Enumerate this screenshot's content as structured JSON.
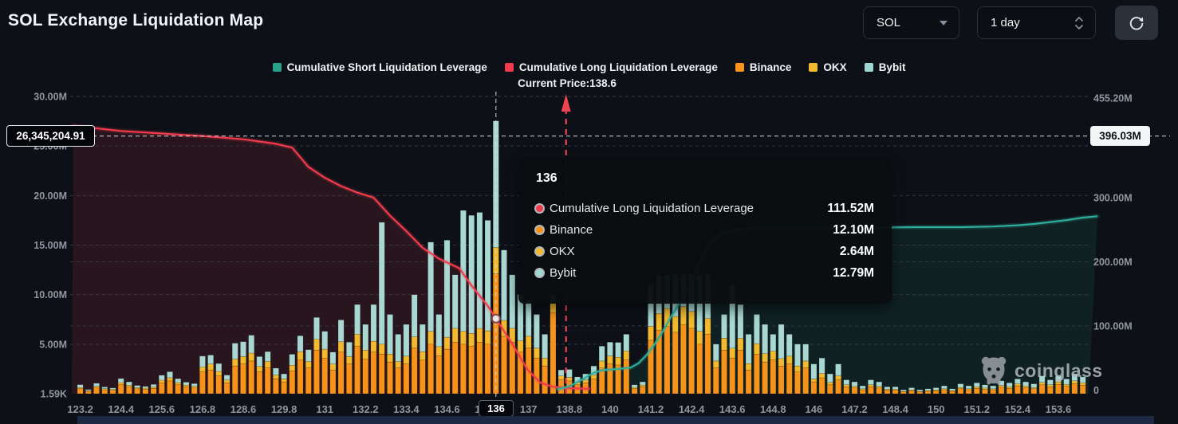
{
  "header": {
    "title": "SOL Exchange Liquidation Map"
  },
  "controls": {
    "symbol_select": {
      "value": "SOL"
    },
    "interval_select": {
      "value": "1 day"
    },
    "refresh_icon": "refresh-arrows"
  },
  "legend": {
    "items": [
      {
        "label": "Cumulative Short Liquidation Leverage",
        "color": "#2aa18b"
      },
      {
        "label": "Cumulative Long Liquidation Leverage",
        "color": "#f23b4e"
      },
      {
        "label": "Binance",
        "color": "#f7931a"
      },
      {
        "label": "OKX",
        "color": "#f3ba2f"
      },
      {
        "label": "Bybit",
        "color": "#9fd8d2"
      }
    ]
  },
  "current_price_label": "Current Price:138.6",
  "crosshair": {
    "y_left_label": "26,345,204.91",
    "y_right_label": "396.03M",
    "x_label": "136"
  },
  "tooltip": {
    "title": "136",
    "rows": [
      {
        "label": "Cumulative Long Liquidation Leverage",
        "value": "111.52M",
        "color": "#f23b4e"
      },
      {
        "label": "Binance",
        "value": "12.10M",
        "color": "#f7931a"
      },
      {
        "label": "OKX",
        "value": "2.64M",
        "color": "#f3ba2f"
      },
      {
        "label": "Bybit",
        "value": "12.79M",
        "color": "#9fd8d2"
      }
    ]
  },
  "watermark": {
    "text": "coinglass"
  },
  "chart_data": {
    "type": "bar",
    "subtype": "stacked-bars-with-cumulative-lines",
    "bar_axis": "left",
    "line_axis": "right",
    "left_axis": {
      "unit": "M",
      "ticks": [
        {
          "value": 30,
          "label": "30.00M"
        },
        {
          "value": 25,
          "label": "25.00M"
        },
        {
          "value": 20,
          "label": "20.00M"
        },
        {
          "value": 15,
          "label": "15.00M"
        },
        {
          "value": 10,
          "label": "10.00M"
        },
        {
          "value": 5,
          "label": "5.00M"
        },
        {
          "value": 0,
          "label": "1.59K"
        }
      ]
    },
    "right_axis": {
      "unit": "M",
      "ticks": [
        {
          "value": 455.2,
          "label": "455.20M"
        },
        {
          "value": 300,
          "label": "300.00M"
        },
        {
          "value": 200,
          "label": "200.00M"
        },
        {
          "value": 100,
          "label": "100.00M"
        },
        {
          "value": 0,
          "label": "0"
        }
      ]
    },
    "x_labels": [
      "123.2",
      "124.4",
      "125.6",
      "126.8",
      "128.6",
      "129.8",
      "131",
      "132.2",
      "133.4",
      "134.6",
      "135.8",
      "137",
      "138.8",
      "140",
      "141.2",
      "142.4",
      "143.6",
      "144.8",
      "146",
      "147.2",
      "148.4",
      "150",
      "151.2",
      "152.4",
      "153.6"
    ],
    "x_label_every": 5,
    "highlighted_x": "136",
    "highlighted_bar_index": 51,
    "current_price": {
      "value": 138.6,
      "bar_index": 59.6
    },
    "crosshair_right_value": 396.03,
    "bar_series_order": [
      "Binance",
      "OKX",
      "Bybit"
    ],
    "bars": [
      [
        0.5,
        0.12,
        0.3
      ],
      [
        0.25,
        0.06,
        0.12
      ],
      [
        0.6,
        0.15,
        0.3
      ],
      [
        0.4,
        0.1,
        0.18
      ],
      [
        0.35,
        0.09,
        0.14
      ],
      [
        0.9,
        0.22,
        0.42
      ],
      [
        0.7,
        0.17,
        0.33
      ],
      [
        0.5,
        0.12,
        0.22
      ],
      [
        0.45,
        0.11,
        0.18
      ],
      [
        0.55,
        0.13,
        0.26
      ],
      [
        1.1,
        0.27,
        0.5
      ],
      [
        1.3,
        0.32,
        0.6
      ],
      [
        0.9,
        0.22,
        0.4
      ],
      [
        0.7,
        0.17,
        0.3
      ],
      [
        0.6,
        0.15,
        0.27
      ],
      [
        2.2,
        0.5,
        1.1
      ],
      [
        2.4,
        0.6,
        0.9
      ],
      [
        1.8,
        0.45,
        0.8
      ],
      [
        1.1,
        0.28,
        0.5
      ],
      [
        2.8,
        0.7,
        1.6
      ],
      [
        3.0,
        0.75,
        1.5
      ],
      [
        3.3,
        0.8,
        1.8
      ],
      [
        2.2,
        0.55,
        1.0
      ],
      [
        2.6,
        0.65,
        1.0
      ],
      [
        1.5,
        0.38,
        0.7
      ],
      [
        1.2,
        0.3,
        0.5
      ],
      [
        2.3,
        0.58,
        1.1
      ],
      [
        3.4,
        0.85,
        1.6
      ],
      [
        2.6,
        0.65,
        1.2
      ],
      [
        4.4,
        1.1,
        2.2
      ],
      [
        3.6,
        0.9,
        1.8
      ],
      [
        2.4,
        0.6,
        1.2
      ],
      [
        4.2,
        1.05,
        2.2
      ],
      [
        3.0,
        0.75,
        1.45
      ],
      [
        4.8,
        1.2,
        3.0
      ],
      [
        3.5,
        0.9,
        2.6
      ],
      [
        4.2,
        1.1,
        3.7
      ],
      [
        4.0,
        1.0,
        12.3
      ],
      [
        3.2,
        0.8,
        4.0
      ],
      [
        2.6,
        0.65,
        2.75
      ],
      [
        3.0,
        0.8,
        3.2
      ],
      [
        4.6,
        1.15,
        4.25
      ],
      [
        3.4,
        0.85,
        2.75
      ],
      [
        5.0,
        1.3,
        9.0
      ],
      [
        3.8,
        0.95,
        3.25
      ],
      [
        4.5,
        1.2,
        9.8
      ],
      [
        5.2,
        1.4,
        5.4
      ],
      [
        5.0,
        1.3,
        12.2
      ],
      [
        4.8,
        1.3,
        11.9
      ],
      [
        5.2,
        1.4,
        11.7
      ],
      [
        5.0,
        1.35,
        11.15
      ],
      [
        12.1,
        2.64,
        12.79
      ],
      [
        5.8,
        1.6,
        7.1
      ],
      [
        5.2,
        1.4,
        5.4
      ],
      [
        4.2,
        1.15,
        4.65
      ],
      [
        4.6,
        1.2,
        3.6
      ],
      [
        3.6,
        1.0,
        3.4
      ],
      [
        2.8,
        0.8,
        2.4
      ],
      [
        8.2,
        1.0,
        0.8
      ],
      [
        1.4,
        0.4,
        0.6
      ],
      [
        1.3,
        0.35,
        0.8
      ],
      [
        0.9,
        0.25,
        0.55
      ],
      [
        1.1,
        0.3,
        0.6
      ],
      [
        1.5,
        0.4,
        0.9
      ],
      [
        2.6,
        0.7,
        1.5
      ],
      [
        3.0,
        0.8,
        1.4
      ],
      [
        2.9,
        0.78,
        1.5
      ],
      [
        3.4,
        0.9,
        1.7
      ],
      [
        0.5,
        0.14,
        0.26
      ],
      [
        0.7,
        0.18,
        0.32
      ],
      [
        5.4,
        1.4,
        4.2
      ],
      [
        6.4,
        1.7,
        3.9
      ],
      [
        6.8,
        1.8,
        3.4
      ],
      [
        6.2,
        1.6,
        4.2
      ],
      [
        7.0,
        1.8,
        3.2
      ],
      [
        6.6,
        1.7,
        3.7
      ],
      [
        5.0,
        1.3,
        5.7
      ],
      [
        6.0,
        1.6,
        4.4
      ],
      [
        2.6,
        0.7,
        1.7
      ],
      [
        4.4,
        1.2,
        2.4
      ],
      [
        3.6,
        1.0,
        6.4
      ],
      [
        4.4,
        1.2,
        3.4
      ],
      [
        2.4,
        0.65,
        2.95
      ],
      [
        4.0,
        1.05,
        2.95
      ],
      [
        3.2,
        0.85,
        2.95
      ],
      [
        3.4,
        0.9,
        1.7
      ],
      [
        2.8,
        0.75,
        3.45
      ],
      [
        3.0,
        0.8,
        2.2
      ],
      [
        2.2,
        0.6,
        2.2
      ],
      [
        2.6,
        0.7,
        1.7
      ],
      [
        1.2,
        0.3,
        1.5
      ],
      [
        1.6,
        0.45,
        1.55
      ],
      [
        0.9,
        0.25,
        0.85
      ],
      [
        1.4,
        0.4,
        1.2
      ],
      [
        0.7,
        0.2,
        0.5
      ],
      [
        0.6,
        0.15,
        0.45
      ],
      [
        0.4,
        0.1,
        0.3
      ],
      [
        0.7,
        0.2,
        0.5
      ],
      [
        0.6,
        0.15,
        0.45
      ],
      [
        0.35,
        0.1,
        0.25
      ],
      [
        0.35,
        0.1,
        0.25
      ],
      [
        0.2,
        0.05,
        0.15
      ],
      [
        0.3,
        0.08,
        0.22
      ],
      [
        0.2,
        0.05,
        0.15
      ],
      [
        0.25,
        0.07,
        0.18
      ],
      [
        0.3,
        0.08,
        0.22
      ],
      [
        0.4,
        0.1,
        0.3
      ],
      [
        0.25,
        0.07,
        0.18
      ],
      [
        0.5,
        0.12,
        0.38
      ],
      [
        0.4,
        0.1,
        0.3
      ],
      [
        0.55,
        0.15,
        0.4
      ],
      [
        0.45,
        0.12,
        0.33
      ],
      [
        0.4,
        0.1,
        0.3
      ],
      [
        0.65,
        0.18,
        0.47
      ],
      [
        0.55,
        0.15,
        0.4
      ],
      [
        0.8,
        0.2,
        0.5
      ],
      [
        0.6,
        0.17,
        0.43
      ],
      [
        0.5,
        0.13,
        0.37
      ],
      [
        0.9,
        0.25,
        0.65
      ],
      [
        0.7,
        0.2,
        0.5
      ],
      [
        0.95,
        0.25,
        0.6
      ],
      [
        0.75,
        0.2,
        0.55
      ],
      [
        1.0,
        0.3,
        0.7
      ],
      [
        0.85,
        0.25,
        0.6
      ]
    ],
    "lines": {
      "long": {
        "name": "Cumulative Long Liquidation Leverage",
        "color": "#f23b4e",
        "points": [
          [
            -0.8,
            412
          ],
          [
            5,
            404
          ],
          [
            10,
            400
          ],
          [
            15,
            396
          ],
          [
            20,
            391
          ],
          [
            24,
            384
          ],
          [
            26,
            378
          ],
          [
            28,
            348
          ],
          [
            30,
            331
          ],
          [
            32,
            318
          ],
          [
            34,
            308
          ],
          [
            36,
            300
          ],
          [
            38,
            272
          ],
          [
            40,
            248
          ],
          [
            42,
            222
          ],
          [
            44,
            205
          ],
          [
            46.5,
            190
          ],
          [
            48,
            163
          ],
          [
            50,
            131
          ],
          [
            51,
            111.52
          ],
          [
            53,
            72
          ],
          [
            54.8,
            33
          ],
          [
            56.4,
            12
          ],
          [
            58,
            5
          ],
          [
            60,
            3
          ],
          [
            62.5,
            2
          ]
        ]
      },
      "short": {
        "name": "Cumulative Short Liquidation Leverage",
        "color": "#2fae9e",
        "points": [
          [
            58.5,
            1
          ],
          [
            60,
            6
          ],
          [
            61.5,
            16
          ],
          [
            63,
            27
          ],
          [
            64,
            31
          ],
          [
            66,
            33
          ],
          [
            67.5,
            35
          ],
          [
            68.5,
            42
          ],
          [
            69.5,
            55
          ],
          [
            70.5,
            72
          ],
          [
            71.5,
            92
          ],
          [
            72.5,
            115
          ],
          [
            73.5,
            135
          ],
          [
            74.5,
            158
          ],
          [
            75.5,
            185
          ],
          [
            76.5,
            212
          ],
          [
            77.5,
            232
          ],
          [
            78.5,
            244
          ],
          [
            80,
            250
          ],
          [
            83,
            252
          ],
          [
            88,
            252
          ],
          [
            95,
            253
          ],
          [
            102,
            254
          ],
          [
            108,
            254
          ],
          [
            112,
            255
          ],
          [
            115,
            257
          ],
          [
            117,
            259
          ],
          [
            119,
            262
          ],
          [
            121,
            265
          ],
          [
            123,
            269
          ],
          [
            124.8,
            271
          ]
        ]
      },
      "marker": {
        "bar_index": 51,
        "value": 111.52
      }
    },
    "colors": {
      "binance": "#f7931a",
      "okx": "#f3ba2f",
      "bybit": "#a9d8d2",
      "long": "#f23b4e",
      "short": "#2fae9e"
    }
  }
}
